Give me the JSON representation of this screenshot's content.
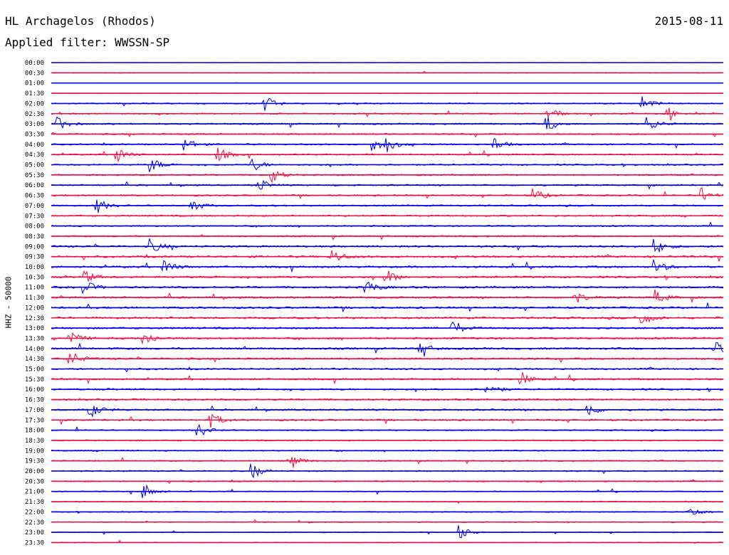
{
  "header": {
    "station": "HL Archagelos (Rhodos)",
    "date": "2015-08-11",
    "filter": "Applied filter: WWSSN-SP",
    "channel": "HHZ - 50000"
  },
  "colors": {
    "even_row": "#0000ee",
    "odd_row": "#ee1144"
  },
  "chart_data": {
    "type": "line",
    "title": "HL Archagelos (Rhodos)",
    "subtitle": "Applied filter: WWSSN-SP",
    "ylabel": "HHZ - 50000",
    "row_labels": [
      "00:00",
      "00:30",
      "01:00",
      "01:30",
      "02:00",
      "02:30",
      "03:00",
      "03:30",
      "04:00",
      "04:30",
      "05:00",
      "05:30",
      "06:00",
      "06:30",
      "07:00",
      "07:30",
      "08:00",
      "08:30",
      "09:00",
      "09:30",
      "10:00",
      "10:30",
      "11:00",
      "11:30",
      "12:00",
      "12:30",
      "13:00",
      "13:30",
      "14:00",
      "14:30",
      "15:00",
      "15:30",
      "16:00",
      "16:30",
      "17:00",
      "17:30",
      "18:00",
      "18:30",
      "19:00",
      "19:30",
      "20:00",
      "20:30",
      "21:00",
      "21:30",
      "22:00",
      "22:30",
      "23:00",
      "23:30"
    ],
    "row_colors": [
      "even_row",
      "odd_row"
    ],
    "row_duration_minutes": 30,
    "noise_level": [
      0.05,
      0.15,
      0.05,
      0.15,
      0.3,
      0.3,
      0.35,
      0.35,
      0.35,
      0.35,
      0.35,
      0.35,
      0.35,
      0.35,
      0.35,
      0.35,
      0.35,
      0.35,
      0.45,
      0.45,
      0.45,
      0.45,
      0.45,
      0.45,
      0.45,
      0.45,
      0.45,
      0.45,
      0.45,
      0.45,
      0.4,
      0.4,
      0.4,
      0.4,
      0.4,
      0.4,
      0.3,
      0.3,
      0.3,
      0.3,
      0.3,
      0.3,
      0.25,
      0.25,
      0.25,
      0.25,
      0.2,
      0.2
    ],
    "events": [
      {
        "row": 4,
        "t": 0.32
      },
      {
        "row": 4,
        "t": 0.88
      },
      {
        "row": 5,
        "t": 0.74
      },
      {
        "row": 5,
        "t": 0.92
      },
      {
        "row": 6,
        "t": 0.01
      },
      {
        "row": 6,
        "t": 0.74
      },
      {
        "row": 6,
        "t": 0.89
      },
      {
        "row": 8,
        "t": 0.2
      },
      {
        "row": 8,
        "t": 0.48
      },
      {
        "row": 8,
        "t": 0.5
      },
      {
        "row": 8,
        "t": 0.66
      },
      {
        "row": 9,
        "t": 0.1
      },
      {
        "row": 9,
        "t": 0.25
      },
      {
        "row": 10,
        "t": 0.15
      },
      {
        "row": 10,
        "t": 0.3
      },
      {
        "row": 11,
        "t": 0.33
      },
      {
        "row": 12,
        "t": 0.31
      },
      {
        "row": 13,
        "t": 0.72
      },
      {
        "row": 13,
        "t": 0.97
      },
      {
        "row": 14,
        "t": 0.07
      },
      {
        "row": 14,
        "t": 0.21
      },
      {
        "row": 18,
        "t": 0.15
      },
      {
        "row": 18,
        "t": 0.9
      },
      {
        "row": 19,
        "t": 0.42
      },
      {
        "row": 20,
        "t": 0.17
      },
      {
        "row": 20,
        "t": 0.9
      },
      {
        "row": 21,
        "t": 0.05
      },
      {
        "row": 21,
        "t": 0.5
      },
      {
        "row": 22,
        "t": 0.05
      },
      {
        "row": 22,
        "t": 0.47
      },
      {
        "row": 23,
        "t": 0.78
      },
      {
        "row": 23,
        "t": 0.9
      },
      {
        "row": 25,
        "t": 0.88
      },
      {
        "row": 26,
        "t": 0.6
      },
      {
        "row": 27,
        "t": 0.03
      },
      {
        "row": 27,
        "t": 0.14
      },
      {
        "row": 28,
        "t": 0.55
      },
      {
        "row": 28,
        "t": 0.99
      },
      {
        "row": 29,
        "t": 0.03
      },
      {
        "row": 31,
        "t": 0.7
      },
      {
        "row": 32,
        "t": 0.65
      },
      {
        "row": 34,
        "t": 0.06
      },
      {
        "row": 34,
        "t": 0.8
      },
      {
        "row": 35,
        "t": 0.24
      },
      {
        "row": 36,
        "t": 0.22
      },
      {
        "row": 39,
        "t": 0.36
      },
      {
        "row": 40,
        "t": 0.3
      },
      {
        "row": 42,
        "t": 0.14
      },
      {
        "row": 44,
        "t": 0.95
      },
      {
        "row": 46,
        "t": 0.61
      }
    ]
  }
}
